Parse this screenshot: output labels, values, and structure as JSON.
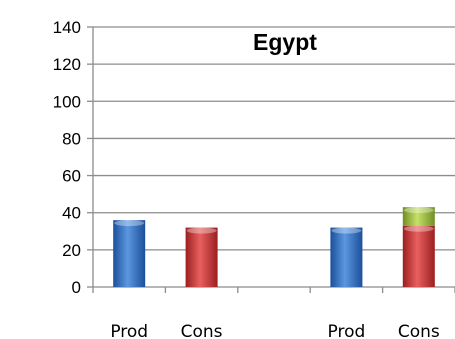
{
  "chart_data": {
    "type": "bar",
    "title": "Egypt",
    "xlabel": "",
    "ylabel": "",
    "ylim": [
      0,
      140
    ],
    "yticks": [
      0,
      20,
      40,
      60,
      80,
      100,
      120,
      140
    ],
    "grid": true,
    "legend": "none",
    "categories": [
      "Prod",
      "Cons",
      "",
      "Prod",
      "Cons"
    ],
    "series": [
      {
        "color": "#2e6fc4",
        "values": [
          36,
          0,
          0,
          32,
          0
        ]
      },
      {
        "color": "#c93434",
        "values": [
          0,
          32,
          0,
          0,
          33
        ]
      },
      {
        "color": "#9dbb3f",
        "values": [
          0,
          0,
          0,
          0,
          10
        ]
      }
    ]
  }
}
